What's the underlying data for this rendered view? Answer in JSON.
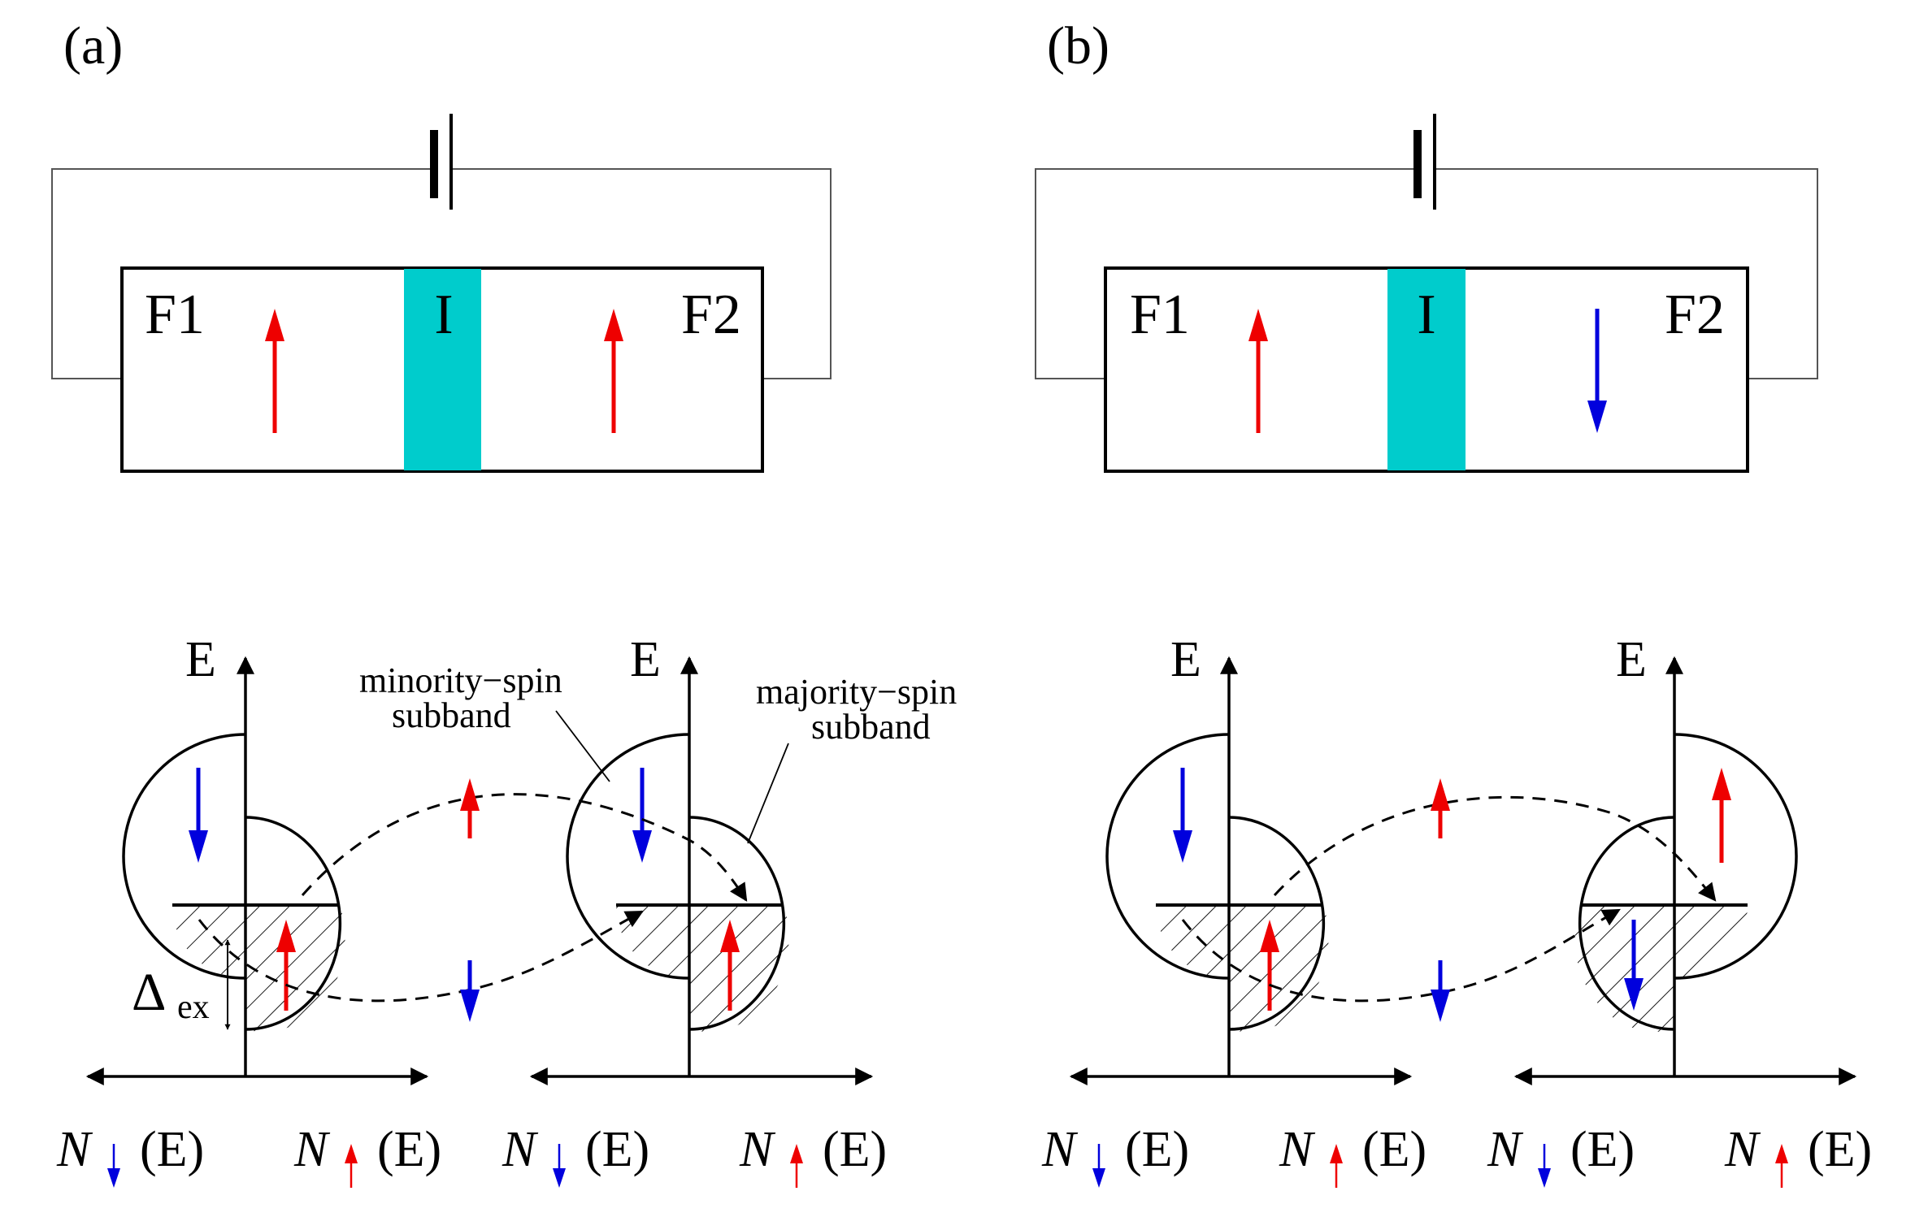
{
  "panels": [
    {
      "id": "a",
      "label": "(a)",
      "layer_left": "F1",
      "layer_barrier": "I",
      "layer_right": "F2",
      "magnetization_left": "up",
      "magnetization_right": "up"
    },
    {
      "id": "b",
      "label": "(b)",
      "layer_left": "F1",
      "layer_barrier": "I",
      "layer_right": "F2",
      "magnetization_left": "up",
      "magnetization_right": "down"
    }
  ],
  "dos": {
    "energy_axis_label": "E",
    "minority_label_line1": "minority−spin",
    "minority_label_line2": "subband",
    "majority_label_line1": "majority−spin",
    "majority_label_line2": "subband",
    "delta_symbol": "Δ",
    "delta_subscript": "ex",
    "n_symbol": "N",
    "n_argument": "(E)"
  },
  "colors": {
    "spin_up": "#ee0000",
    "spin_down": "#0000dd",
    "barrier": "#00cccc",
    "lines": "#000000"
  }
}
